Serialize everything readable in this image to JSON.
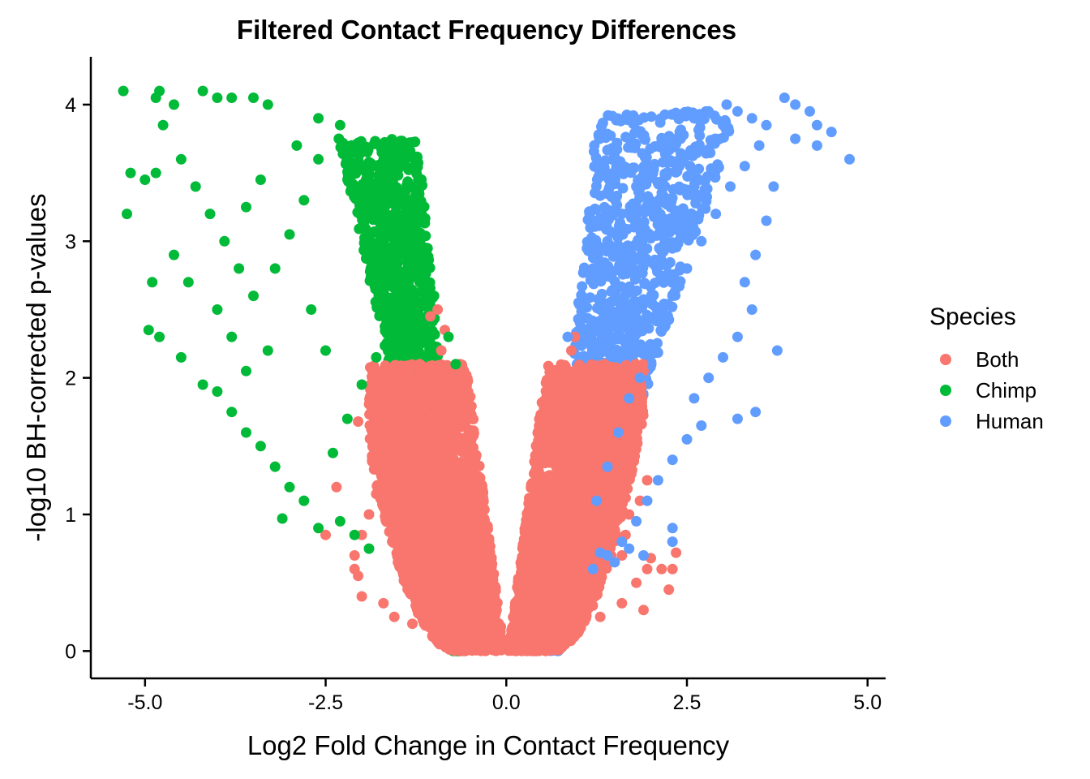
{
  "chart_data": {
    "type": "scatter",
    "title": "Filtered Contact Frequency Differences",
    "xlabel": "Log2 Fold Change in Contact Frequency",
    "ylabel": "-log10 BH-corrected p-values",
    "xlim": [
      -5.75,
      5.25
    ],
    "ylim": [
      -0.2,
      4.35
    ],
    "x_ticks": [
      -5.0,
      -2.5,
      0.0,
      2.5,
      5.0
    ],
    "x_tick_labels": [
      "-5.0",
      "-2.5",
      "0.0",
      "2.5",
      "5.0"
    ],
    "y_ticks": [
      0,
      1,
      2,
      3,
      4
    ],
    "y_tick_labels": [
      "0",
      "1",
      "2",
      "3",
      "4"
    ],
    "grid": false,
    "legend": {
      "title": "Species",
      "placement": "right"
    },
    "series": [
      {
        "name": "Both",
        "color": "#F8766D",
        "points": [
          [
            -0.95,
            2.5
          ],
          [
            -1.05,
            2.45
          ],
          [
            -0.85,
            2.35
          ],
          [
            -0.9,
            2.2
          ],
          [
            -1.2,
            2.1
          ],
          [
            -1.1,
            1.95
          ],
          [
            -1.3,
            1.8
          ],
          [
            -1.45,
            1.7
          ],
          [
            -1.55,
            1.6
          ],
          [
            -1.6,
            1.45
          ],
          [
            -1.7,
            1.3
          ],
          [
            -1.8,
            1.15
          ],
          [
            -1.9,
            1.0
          ],
          [
            -2.0,
            0.85
          ],
          [
            -2.1,
            0.7
          ],
          [
            -2.05,
            0.55
          ],
          [
            -2.0,
            0.4
          ],
          [
            -2.35,
            1.2
          ],
          [
            -2.05,
            1.68
          ],
          [
            -1.85,
            1.55
          ],
          [
            -2.5,
            0.85
          ],
          [
            -1.55,
            0.25
          ],
          [
            -1.7,
            0.35
          ],
          [
            -2.1,
            0.6
          ],
          [
            -1.3,
            0.2
          ],
          [
            -1.0,
            0.15
          ],
          [
            -0.7,
            0.1
          ],
          [
            -0.4,
            0.05
          ],
          [
            0.4,
            0.05
          ],
          [
            0.7,
            0.1
          ],
          [
            1.0,
            0.15
          ],
          [
            1.3,
            0.25
          ],
          [
            1.6,
            0.35
          ],
          [
            1.8,
            0.5
          ],
          [
            1.95,
            0.6
          ],
          [
            2.0,
            0.68
          ],
          [
            2.3,
            0.6
          ],
          [
            2.35,
            0.72
          ],
          [
            2.15,
            0.6
          ],
          [
            2.25,
            0.45
          ],
          [
            1.9,
            0.3
          ],
          [
            1.45,
            0.7
          ],
          [
            1.5,
            1.0
          ],
          [
            1.35,
            1.25
          ],
          [
            1.2,
            1.5
          ],
          [
            1.1,
            1.8
          ],
          [
            1.0,
            2.0
          ],
          [
            0.9,
            2.2
          ],
          [
            0.95,
            2.3
          ],
          [
            1.75,
            1.75
          ],
          [
            1.55,
            1.35
          ],
          [
            1.95,
            1.25
          ],
          [
            1.85,
            1.1
          ],
          [
            1.7,
            1.0
          ],
          [
            1.65,
            0.85
          ],
          [
            1.6,
            0.7
          ],
          [
            0.45,
            0.3
          ],
          [
            0.35,
            0.25
          ]
        ],
        "regions": [
          {
            "ymax": 2.0,
            "xmin": -1.2,
            "xmax": -0.3,
            "ymin": 0.0
          },
          {
            "ymax": 2.0,
            "xmin": 0.4,
            "xmax": 1.2,
            "ymin": 0.0
          }
        ]
      },
      {
        "name": "Chimp",
        "color": "#00BA38",
        "points": [
          [
            -5.3,
            4.1
          ],
          [
            -4.8,
            4.1
          ],
          [
            -4.2,
            4.1
          ],
          [
            -4.0,
            4.05
          ],
          [
            -3.8,
            4.05
          ],
          [
            -3.5,
            4.05
          ],
          [
            -3.3,
            4.0
          ],
          [
            -4.85,
            4.05
          ],
          [
            -4.6,
            4.0
          ],
          [
            -5.0,
            3.45
          ],
          [
            -5.2,
            3.5
          ],
          [
            -5.25,
            3.2
          ],
          [
            -4.85,
            3.5
          ],
          [
            -4.75,
            3.85
          ],
          [
            -4.5,
            3.6
          ],
          [
            -4.3,
            3.4
          ],
          [
            -4.1,
            3.2
          ],
          [
            -3.9,
            3.0
          ],
          [
            -3.7,
            2.8
          ],
          [
            -3.5,
            2.6
          ],
          [
            -4.9,
            2.7
          ],
          [
            -4.95,
            2.35
          ],
          [
            -4.8,
            2.3
          ],
          [
            -4.5,
            2.15
          ],
          [
            -4.2,
            1.95
          ],
          [
            -4.0,
            1.9
          ],
          [
            -3.8,
            1.75
          ],
          [
            -3.6,
            1.6
          ],
          [
            -3.4,
            1.5
          ],
          [
            -3.2,
            1.35
          ],
          [
            -3.0,
            1.2
          ],
          [
            -2.8,
            1.1
          ],
          [
            -3.1,
            0.97
          ],
          [
            -2.6,
            0.9
          ],
          [
            -2.4,
            1.45
          ],
          [
            -2.2,
            1.7
          ],
          [
            -2.0,
            1.95
          ],
          [
            -1.8,
            2.15
          ],
          [
            -1.6,
            2.35
          ],
          [
            -1.4,
            2.55
          ],
          [
            -1.2,
            2.7
          ],
          [
            -2.3,
            3.85
          ],
          [
            -2.0,
            3.7
          ],
          [
            -1.8,
            3.55
          ],
          [
            -1.6,
            3.35
          ],
          [
            -1.4,
            3.1
          ],
          [
            -1.2,
            2.85
          ],
          [
            -1.0,
            2.6
          ],
          [
            -0.8,
            2.3
          ],
          [
            -0.7,
            2.1
          ],
          [
            -2.6,
            3.6
          ],
          [
            -2.8,
            3.3
          ],
          [
            -3.0,
            3.05
          ],
          [
            -3.2,
            2.8
          ],
          [
            -2.7,
            2.5
          ],
          [
            -2.5,
            2.2
          ],
          [
            -3.3,
            2.2
          ],
          [
            -3.6,
            2.05
          ],
          [
            -3.8,
            2.3
          ],
          [
            -4.0,
            2.5
          ],
          [
            -4.4,
            2.7
          ],
          [
            -4.6,
            2.9
          ],
          [
            -3.6,
            3.25
          ],
          [
            -3.4,
            3.45
          ],
          [
            -2.9,
            3.7
          ],
          [
            -2.6,
            3.9
          ],
          [
            -2.3,
            0.95
          ],
          [
            -2.1,
            0.85
          ],
          [
            -1.9,
            0.75
          ]
        ],
        "regions": [
          {
            "ymax": 3.8,
            "xmin": -2.4,
            "xmax": -0.75,
            "ymin": 0.6
          }
        ]
      },
      {
        "name": "Human",
        "color": "#619CFF",
        "points": [
          [
            3.85,
            4.05
          ],
          [
            4.0,
            4.0
          ],
          [
            4.2,
            3.95
          ],
          [
            4.3,
            3.85
          ],
          [
            4.5,
            3.8
          ],
          [
            4.75,
            3.6
          ],
          [
            4.3,
            3.7
          ],
          [
            4.0,
            3.75
          ],
          [
            3.6,
            3.85
          ],
          [
            3.4,
            3.9
          ],
          [
            3.2,
            3.95
          ],
          [
            3.05,
            4.0
          ],
          [
            3.7,
            3.4
          ],
          [
            3.6,
            3.15
          ],
          [
            3.45,
            2.9
          ],
          [
            3.3,
            2.7
          ],
          [
            3.75,
            2.2
          ],
          [
            3.4,
            2.5
          ],
          [
            3.2,
            2.3
          ],
          [
            3.0,
            2.15
          ],
          [
            2.8,
            2.0
          ],
          [
            2.6,
            1.85
          ],
          [
            3.45,
            1.75
          ],
          [
            3.2,
            1.7
          ],
          [
            2.7,
            1.65
          ],
          [
            2.5,
            1.55
          ],
          [
            2.3,
            1.4
          ],
          [
            2.1,
            1.25
          ],
          [
            1.95,
            1.1
          ],
          [
            1.8,
            0.95
          ],
          [
            1.6,
            0.8
          ],
          [
            1.4,
            0.7
          ],
          [
            1.2,
            0.6
          ],
          [
            2.3,
            0.9
          ],
          [
            2.3,
            0.8
          ],
          [
            1.9,
            0.7
          ],
          [
            1.7,
            0.75
          ],
          [
            1.5,
            0.65
          ],
          [
            1.3,
            0.72
          ],
          [
            1.25,
            1.1
          ],
          [
            1.4,
            1.35
          ],
          [
            1.55,
            1.6
          ],
          [
            1.7,
            1.85
          ],
          [
            1.85,
            2.0
          ],
          [
            2.0,
            2.2
          ],
          [
            2.15,
            2.4
          ],
          [
            2.3,
            2.6
          ],
          [
            2.5,
            2.8
          ],
          [
            2.7,
            3.0
          ],
          [
            2.9,
            3.2
          ],
          [
            3.1,
            3.4
          ],
          [
            3.3,
            3.55
          ],
          [
            3.5,
            3.7
          ],
          [
            0.85,
            2.3
          ],
          [
            1.0,
            2.55
          ],
          [
            1.2,
            2.8
          ],
          [
            1.4,
            3.0
          ],
          [
            1.6,
            3.2
          ],
          [
            1.8,
            3.4
          ],
          [
            2.0,
            3.55
          ],
          [
            2.2,
            3.7
          ],
          [
            2.4,
            3.8
          ],
          [
            2.6,
            3.9
          ],
          [
            2.8,
            3.95
          ],
          [
            3.0,
            3.85
          ]
        ],
        "regions": [
          {
            "ymax": 3.9,
            "xmin": 0.8,
            "xmax": 3.2,
            "ymin": 0.6
          }
        ]
      }
    ]
  }
}
